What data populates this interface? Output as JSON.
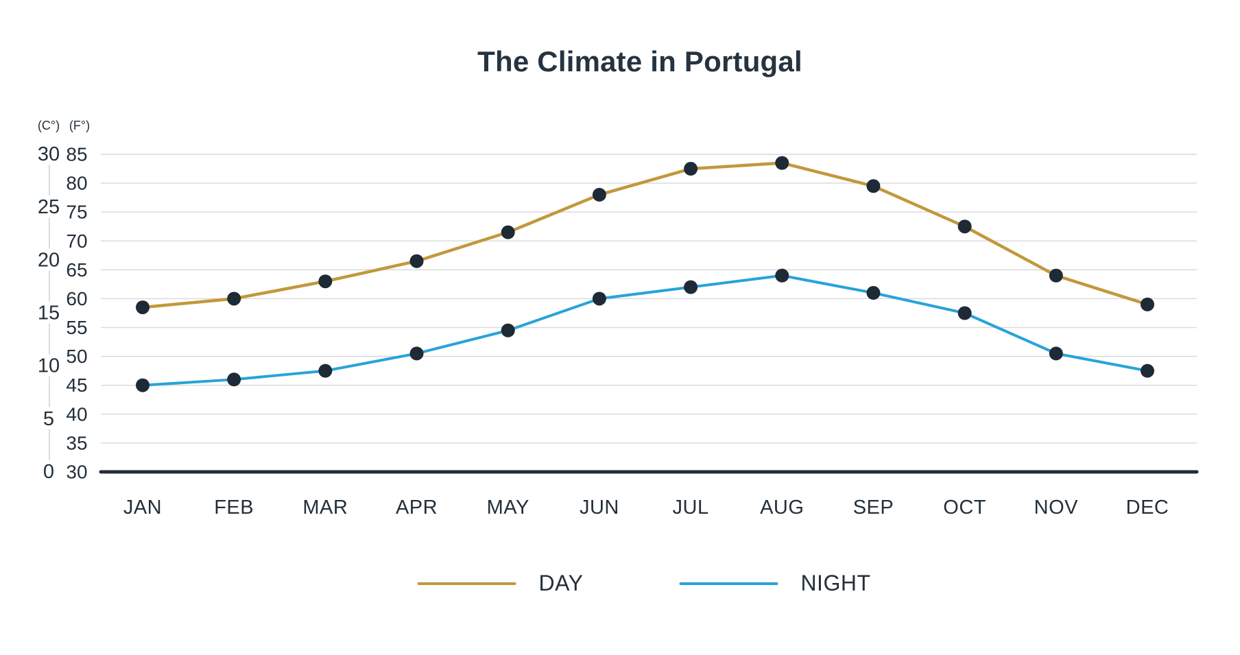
{
  "header": {
    "title": "The Climate in Portugal"
  },
  "chart_data": {
    "type": "line",
    "title": "The Climate in Portugal",
    "categories": [
      "JAN",
      "FEB",
      "MAR",
      "APR",
      "MAY",
      "JUN",
      "JUL",
      "AUG",
      "SEP",
      "OCT",
      "NOV",
      "DEC"
    ],
    "series": [
      {
        "name": "DAY",
        "color": "#c1983c",
        "values_f": [
          58.5,
          60,
          63,
          66.5,
          71.5,
          78,
          82.5,
          83.5,
          79.5,
          72.5,
          64,
          59
        ]
      },
      {
        "name": "NIGHT",
        "color": "#29a3d9",
        "values_f": [
          45,
          46,
          47.5,
          50.5,
          54.5,
          60,
          62,
          64,
          61,
          57.5,
          50.5,
          47.5
        ]
      }
    ],
    "axes": {
      "left_primary": {
        "label": "(C°)",
        "ticks": [
          0,
          5,
          10,
          15,
          20,
          25,
          30
        ]
      },
      "left_secondary": {
        "label": "(F°)",
        "ticks": [
          30,
          35,
          40,
          45,
          50,
          55,
          60,
          65,
          70,
          75,
          80,
          85
        ]
      },
      "f_range": [
        30,
        85
      ],
      "c_range": [
        0,
        30
      ],
      "grid": true
    },
    "legend": {
      "position": "bottom",
      "entries": [
        "DAY",
        "NIGHT"
      ]
    },
    "colors": {
      "point": "#1f2a37",
      "gridline": "#d9d9d9",
      "baseline": "#242c34",
      "c_axis_line": "#bfc3c7",
      "text": "#222f3a",
      "title": "#263340"
    }
  }
}
